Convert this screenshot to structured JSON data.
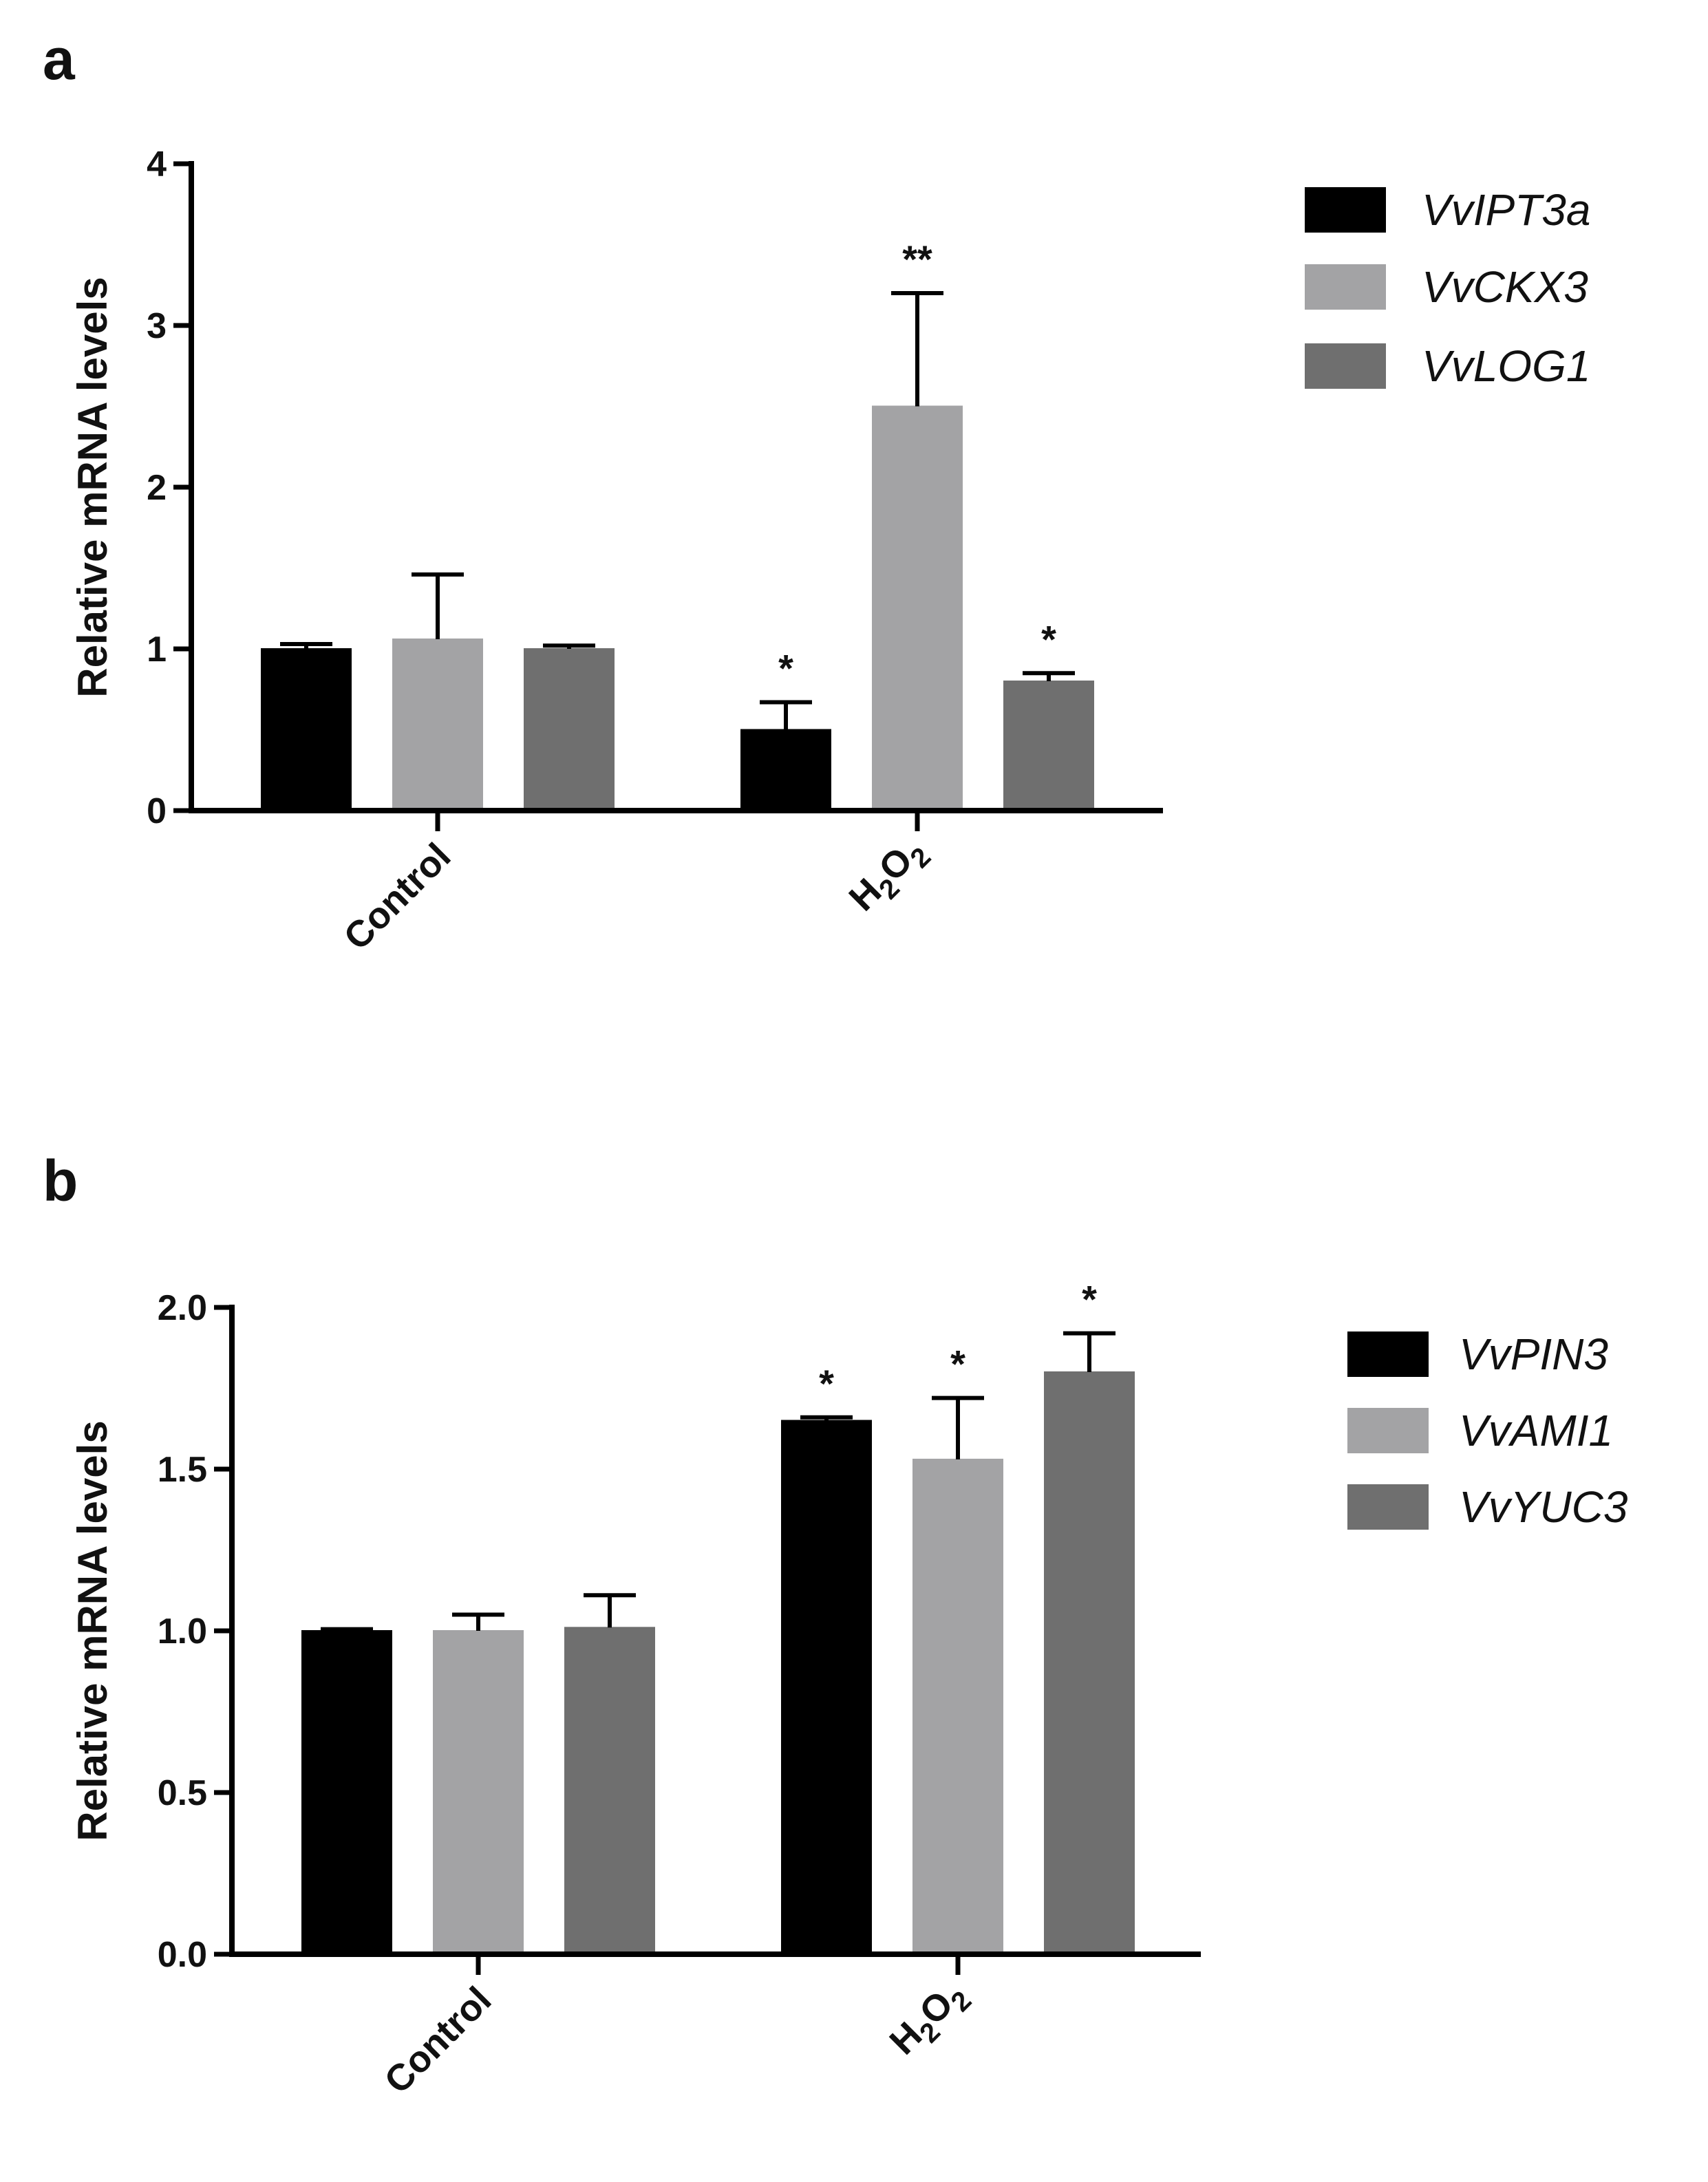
{
  "chart_data": [
    {
      "type": "bar",
      "panel": "a",
      "ylabel": "Relative mRNA levels",
      "xlabel": "",
      "ylim": [
        0,
        4
      ],
      "yticks": [
        0,
        1,
        2,
        3,
        4
      ],
      "ytick_labels": [
        "0",
        "1",
        "2",
        "3",
        "4"
      ],
      "categories": [
        "Control",
        "H2O2"
      ],
      "category_labels": [
        {
          "main": "Control",
          "parts": []
        },
        {
          "main": "",
          "parts": [
            {
              "t": "H",
              "sub": false
            },
            {
              "t": "2",
              "sub": true
            },
            {
              "t": "O",
              "sub": false
            },
            {
              "t": "2",
              "sub": true
            }
          ]
        }
      ],
      "legend_position": "top-right",
      "series": [
        {
          "name": "VvIPT3a",
          "color": "#000000",
          "values": [
            1.0,
            0.5
          ],
          "errors": [
            0.03,
            0.17
          ],
          "significance": [
            "",
            "*"
          ]
        },
        {
          "name": "VvCKX3",
          "color": "#a3a3a5",
          "values": [
            1.06,
            2.5
          ],
          "errors": [
            0.4,
            0.7
          ],
          "significance": [
            "",
            "**"
          ]
        },
        {
          "name": "VvLOG1",
          "color": "#6f6f6f",
          "values": [
            1.0,
            0.8
          ],
          "errors": [
            0.02,
            0.05
          ],
          "significance": [
            "",
            "*"
          ]
        }
      ]
    },
    {
      "type": "bar",
      "panel": "b",
      "ylabel": "Relative mRNA levels",
      "xlabel": "",
      "ylim": [
        0,
        2
      ],
      "yticks": [
        0,
        0.5,
        1.0,
        1.5,
        2.0
      ],
      "ytick_labels": [
        "0.0",
        "0.5",
        "1.0",
        "1.5",
        "2.0"
      ],
      "categories": [
        "Control",
        "H2O2"
      ],
      "category_labels": [
        {
          "main": "Control",
          "parts": []
        },
        {
          "main": "",
          "parts": [
            {
              "t": "H",
              "sub": false
            },
            {
              "t": "2",
              "sub": true
            },
            {
              "t": "O",
              "sub": false
            },
            {
              "t": "2",
              "sub": true
            }
          ]
        }
      ],
      "legend_position": "top-right",
      "series": [
        {
          "name": "VvPIN3",
          "color": "#000000",
          "values": [
            1.0,
            1.65
          ],
          "errors": [
            0.005,
            0.01
          ],
          "significance": [
            "",
            "*"
          ]
        },
        {
          "name": "VvAMI1",
          "color": "#a3a3a5",
          "values": [
            1.0,
            1.53
          ],
          "errors": [
            0.05,
            0.19
          ],
          "significance": [
            "",
            "*"
          ]
        },
        {
          "name": "VvYUC3",
          "color": "#6f6f6f",
          "values": [
            1.01,
            1.8
          ],
          "errors": [
            0.1,
            0.12
          ],
          "significance": [
            "",
            "*"
          ]
        }
      ]
    }
  ]
}
